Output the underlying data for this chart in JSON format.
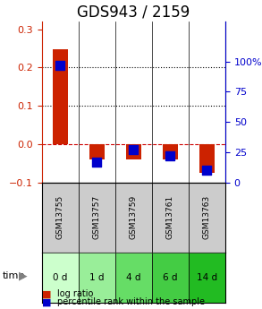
{
  "title": "GDS943 / 2159",
  "samples": [
    "GSM13755",
    "GSM13757",
    "GSM13759",
    "GSM13761",
    "GSM13763"
  ],
  "time_labels": [
    "0 d",
    "1 d",
    "4 d",
    "6 d",
    "14 d"
  ],
  "log_ratio": [
    0.248,
    -0.04,
    -0.04,
    -0.04,
    -0.075
  ],
  "percentile_rank": [
    97,
    17,
    27,
    22,
    10
  ],
  "bar_color": "#cc2200",
  "dot_color": "#0000cc",
  "ylim_left": [
    -0.1,
    0.32
  ],
  "ylim_right": [
    0,
    133
  ],
  "yticks_left": [
    -0.1,
    0.0,
    0.1,
    0.2,
    0.3
  ],
  "yticks_right": [
    0,
    25,
    50,
    75,
    100
  ],
  "hline_y_left": [
    0.0,
    0.1,
    0.2
  ],
  "hline_y_right_equiv": [
    25,
    50,
    75
  ],
  "dashed_zero_color": "#cc0000",
  "grid_color": "#000000",
  "sample_bg_color": "#cccccc",
  "time_bg_colors": [
    "#ccffcc",
    "#99ee99",
    "#66dd66",
    "#44cc44",
    "#22bb22"
  ],
  "bar_width": 0.4,
  "dot_size": 60,
  "title_fontsize": 12,
  "tick_fontsize": 8,
  "label_fontsize": 8,
  "background_color": "#ffffff"
}
